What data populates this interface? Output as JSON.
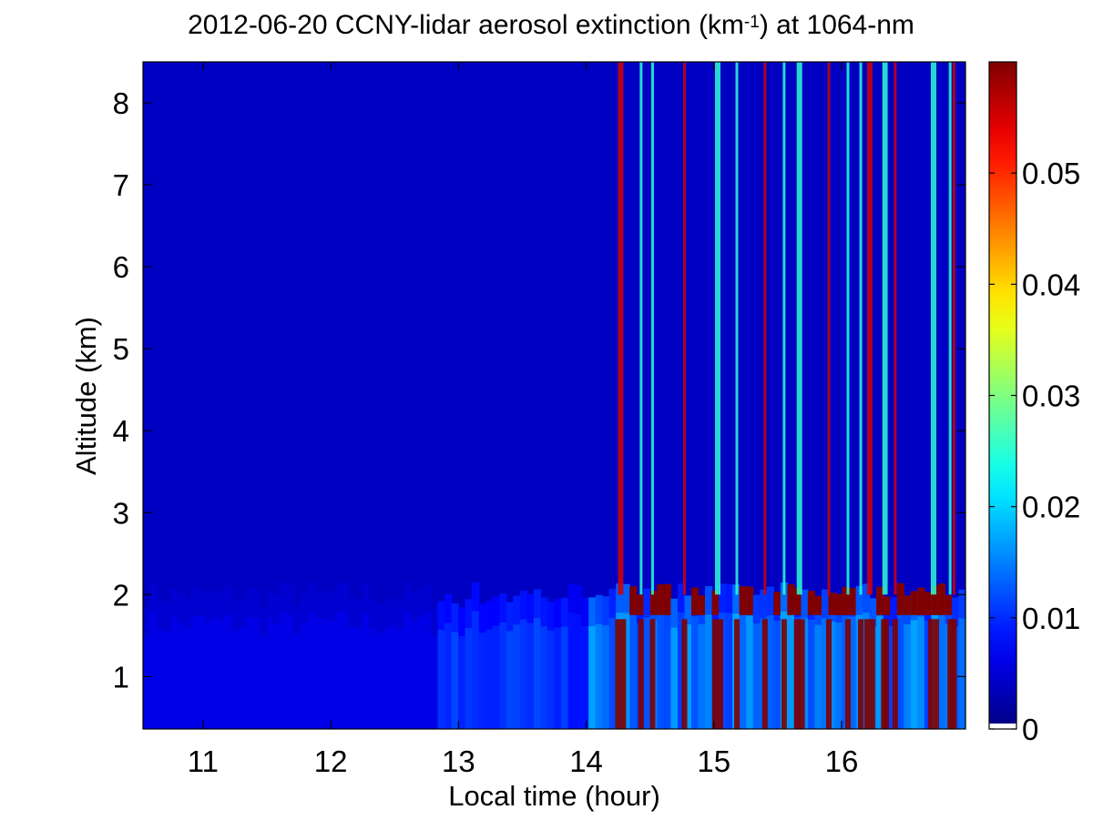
{
  "chart_data": {
    "type": "heatmap",
    "title": {
      "prefix": "2012-06-20 CCNY-lidar aerosol extinction (km",
      "superscript": "-1",
      "suffix": ") at 1064-nm"
    },
    "xlabel": "Local time (hour)",
    "ylabel": "Altitude (km)",
    "xlim": [
      10.53,
      16.97
    ],
    "ylim": [
      0.36,
      8.5
    ],
    "x_ticks": [
      11,
      12,
      13,
      14,
      15,
      16
    ],
    "x_tick_labels": [
      "11",
      "12",
      "13",
      "14",
      "15",
      "16"
    ],
    "y_ticks": [
      1,
      2,
      3,
      4,
      5,
      6,
      7,
      8
    ],
    "y_tick_labels": [
      "1",
      "2",
      "3",
      "4",
      "5",
      "6",
      "7",
      "8"
    ],
    "colorbar": {
      "colormap": "jet",
      "clim": [
        0,
        0.06
      ],
      "ticks": [
        0,
        0.01,
        0.02,
        0.03,
        0.04,
        0.05
      ],
      "tick_labels": [
        "0",
        "0.01",
        "0.02",
        "0.03",
        "0.04",
        "0.05"
      ],
      "below_min_color": "#ffffff"
    },
    "background_extinction": 0.004,
    "boundary_layer": {
      "top_before_14h_km": 2.0,
      "top_after_14h_km": 2.05,
      "fill_extinction": 0.011,
      "cloud_base_km": 1.75,
      "cloud_extinction": 0.06
    },
    "cloud_streak_times": [
      14.27,
      14.43,
      14.52,
      14.77,
      15.03,
      15.18,
      15.4,
      15.55,
      15.67,
      15.9,
      16.05,
      16.15,
      16.22,
      16.33,
      16.35,
      16.42,
      16.72,
      16.85,
      16.88
    ]
  }
}
